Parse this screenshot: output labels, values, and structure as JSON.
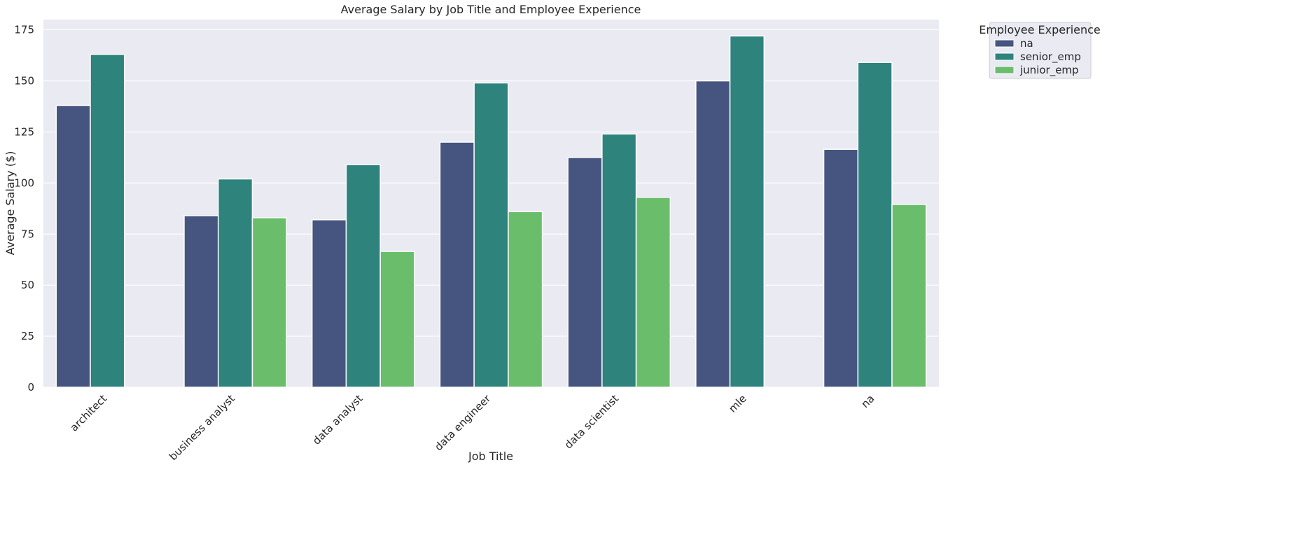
{
  "chart_data": {
    "type": "bar",
    "title": "Average Salary by Job Title and Employee Experience",
    "xlabel": "Job Title",
    "ylabel": "Average Salary ($)",
    "categories": [
      "architect",
      "business analyst",
      "data analyst",
      "data engineer",
      "data scientist",
      "mle",
      "na"
    ],
    "series": [
      {
        "name": "na",
        "color": "#46557f",
        "values": [
          138,
          84,
          82,
          120,
          112.5,
          150,
          116.5
        ]
      },
      {
        "name": "senior_emp",
        "color": "#2e837d",
        "values": [
          163,
          102,
          109,
          149,
          124,
          172,
          159
        ]
      },
      {
        "name": "junior_emp",
        "color": "#6abd6b",
        "values": [
          null,
          83,
          66.5,
          86,
          93,
          null,
          89.5
        ]
      }
    ],
    "ylim": [
      0,
      180
    ],
    "yticks": [
      0,
      25,
      50,
      75,
      100,
      125,
      150,
      175
    ],
    "grid": true,
    "legend": {
      "title": "Employee Experience",
      "placement": "outside top-right"
    }
  }
}
